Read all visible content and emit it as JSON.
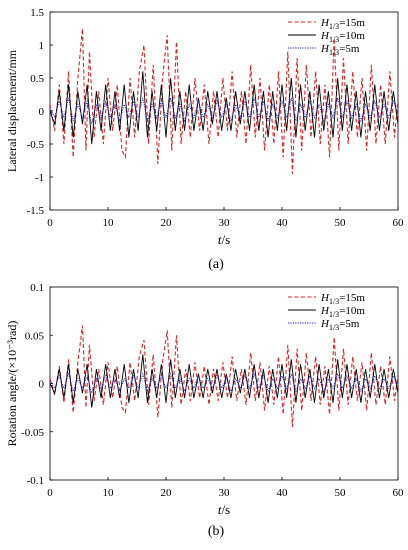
{
  "chart_data": [
    {
      "panel_label": "(a)",
      "type": "line",
      "xlabel_italic": "t",
      "xlabel_unit": "/s",
      "ylabel": "Lateral displacement/mm",
      "xlim": [
        0,
        60
      ],
      "ylim": [
        -1.5,
        1.5
      ],
      "x_ticks": [
        "0",
        "10",
        "20",
        "30",
        "40",
        "50",
        "60"
      ],
      "y_ticks": [
        "-1.5",
        "-1",
        "-0.5",
        "0",
        "0.5",
        "1",
        "1.5"
      ],
      "grid": false,
      "legend_position": "top-right",
      "series": [
        {
          "name": "H1/3=15m",
          "legend_var": "H",
          "legend_sub": "1/3",
          "legend_val": "=15m",
          "color": "#d62728",
          "dash": "dashed",
          "amplitude": 1.25,
          "x": [
            0,
            0.8,
            1.6,
            2.4,
            3.2,
            4.0,
            4.8,
            5.6,
            6.2,
            6.8,
            7.6,
            8.4,
            9.2,
            10.0,
            10.8,
            11.6,
            12.4,
            13.0,
            13.8,
            14.6,
            15.4,
            16.2,
            17.0,
            17.8,
            18.6,
            19.4,
            20.2,
            21.0,
            21.8,
            22.6,
            23.4,
            24.2,
            25.0,
            25.8,
            26.6,
            27.4,
            28.2,
            29.0,
            29.8,
            30.6,
            31.4,
            32.2,
            33.0,
            33.8,
            34.6,
            35.4,
            36.2,
            37.0,
            37.8,
            38.6,
            39.4,
            40.2,
            41.0,
            41.8,
            42.6,
            43.4,
            44.2,
            45.0,
            45.8,
            46.6,
            47.4,
            48.2,
            49.0,
            49.8,
            50.6,
            51.4,
            52.2,
            53.0,
            53.8,
            54.6,
            55.4,
            56.2,
            57.0,
            57.8,
            58.6,
            59.4,
            60.0
          ],
          "y": [
            0.1,
            -0.3,
            0.4,
            -0.5,
            0.6,
            -0.7,
            0.5,
            1.25,
            -0.6,
            0.9,
            -0.4,
            0.3,
            -0.5,
            0.5,
            -0.3,
            0.4,
            -0.6,
            -0.7,
            0.5,
            -0.4,
            0.6,
            1.0,
            -0.5,
            0.7,
            -0.8,
            0.5,
            1.15,
            -0.6,
            1.05,
            -0.5,
            0.3,
            -0.4,
            0.5,
            -0.3,
            0.4,
            -0.5,
            0.3,
            -0.4,
            0.5,
            -0.3,
            0.6,
            -0.4,
            0.3,
            -0.5,
            0.7,
            -0.4,
            0.5,
            -0.6,
            0.4,
            -0.5,
            0.6,
            -0.7,
            0.9,
            -0.95,
            0.8,
            -0.6,
            0.7,
            -0.4,
            0.6,
            -0.5,
            0.4,
            -0.7,
            1.1,
            -0.6,
            0.8,
            -0.5,
            0.6,
            -0.4,
            0.5,
            -0.6,
            0.7,
            -0.5,
            0.4,
            -0.5,
            0.6,
            -0.4,
            0.2
          ]
        },
        {
          "name": "H1/3=10m",
          "legend_var": "H",
          "legend_sub": "1/3",
          "legend_val": "=10m",
          "color": "#000000",
          "dash": "solid",
          "amplitude": 0.6,
          "x": [
            0,
            0.8,
            1.6,
            2.4,
            3.2,
            4.0,
            4.8,
            5.6,
            6.4,
            7.2,
            8.0,
            8.8,
            9.6,
            10.4,
            11.2,
            12.0,
            12.8,
            13.6,
            14.4,
            15.2,
            16.0,
            16.8,
            17.6,
            18.4,
            19.2,
            20.0,
            20.8,
            21.6,
            22.4,
            23.2,
            24.0,
            24.8,
            25.6,
            26.4,
            27.2,
            28.0,
            28.8,
            29.6,
            30.4,
            31.2,
            32.0,
            32.8,
            33.6,
            34.4,
            35.2,
            36.0,
            36.8,
            37.6,
            38.4,
            39.2,
            40.0,
            40.8,
            41.6,
            42.4,
            43.2,
            44.0,
            44.8,
            45.6,
            46.4,
            47.2,
            48.0,
            48.8,
            49.6,
            50.4,
            51.2,
            52.0,
            52.8,
            53.6,
            54.4,
            55.2,
            56.0,
            56.8,
            57.6,
            58.4,
            59.2,
            60.0
          ],
          "y": [
            0.0,
            -0.2,
            0.3,
            -0.3,
            0.4,
            -0.4,
            0.3,
            -0.2,
            0.4,
            -0.5,
            0.3,
            -0.3,
            0.4,
            -0.3,
            0.3,
            -0.3,
            0.4,
            -0.4,
            0.3,
            -0.3,
            0.6,
            -0.4,
            0.3,
            -0.3,
            0.4,
            -0.4,
            0.5,
            -0.3,
            0.3,
            -0.3,
            0.4,
            -0.3,
            0.2,
            -0.3,
            0.3,
            -0.2,
            0.3,
            -0.3,
            0.2,
            -0.3,
            0.3,
            -0.2,
            0.3,
            -0.3,
            0.4,
            -0.3,
            0.3,
            -0.4,
            0.3,
            -0.3,
            0.4,
            -0.3,
            0.5,
            -0.4,
            0.4,
            -0.3,
            0.3,
            -0.4,
            0.4,
            -0.3,
            0.3,
            -0.4,
            0.5,
            -0.3,
            0.4,
            -0.3,
            0.3,
            -0.4,
            0.3,
            -0.3,
            0.4,
            -0.3,
            0.3,
            -0.3,
            0.3,
            -0.2
          ]
        },
        {
          "name": "H1/3=5m",
          "legend_var": "H",
          "legend_sub": "1/3",
          "legend_val": "=5m",
          "color": "#1f1fcf",
          "dash": "dotted",
          "amplitude": 0.25,
          "x": [
            0,
            0.8,
            1.6,
            2.4,
            3.2,
            4.0,
            4.8,
            5.6,
            6.4,
            7.2,
            8.0,
            8.8,
            9.6,
            10.4,
            11.2,
            12.0,
            12.8,
            13.6,
            14.4,
            15.2,
            16.0,
            16.8,
            17.6,
            18.4,
            19.2,
            20.0,
            20.8,
            21.6,
            22.4,
            23.2,
            24.0,
            24.8,
            25.6,
            26.4,
            27.2,
            28.0,
            28.8,
            29.6,
            30.4,
            31.2,
            32.0,
            32.8,
            33.6,
            34.4,
            35.2,
            36.0,
            36.8,
            37.6,
            38.4,
            39.2,
            40.0,
            40.8,
            41.6,
            42.4,
            43.2,
            44.0,
            44.8,
            45.6,
            46.4,
            47.2,
            48.0,
            48.8,
            49.6,
            50.4,
            51.2,
            52.0,
            52.8,
            53.6,
            54.4,
            55.2,
            56.0,
            56.8,
            57.6,
            58.4,
            59.2,
            60.0
          ],
          "y": [
            0.05,
            -0.1,
            0.15,
            -0.1,
            0.2,
            -0.15,
            0.1,
            -0.1,
            0.15,
            -0.2,
            0.1,
            -0.1,
            0.15,
            -0.1,
            0.1,
            -0.15,
            0.1,
            -0.1,
            0.15,
            -0.1,
            0.2,
            -0.15,
            0.1,
            -0.1,
            0.15,
            -0.1,
            0.2,
            -0.1,
            0.1,
            -0.15,
            0.1,
            -0.1,
            0.15,
            -0.1,
            0.1,
            -0.1,
            0.15,
            -0.1,
            0.1,
            -0.15,
            0.1,
            -0.1,
            0.15,
            -0.1,
            0.2,
            -0.1,
            0.15,
            -0.15,
            0.1,
            -0.1,
            0.15,
            -0.1,
            0.2,
            -0.15,
            0.1,
            -0.1,
            0.15,
            -0.1,
            0.1,
            -0.15,
            0.1,
            -0.1,
            0.2,
            -0.1,
            0.15,
            -0.1,
            0.1,
            -0.15,
            0.1,
            -0.1,
            0.15,
            -0.1,
            0.1,
            -0.1,
            0.15,
            -0.05
          ]
        }
      ]
    },
    {
      "panel_label": "(b)",
      "type": "line",
      "xlabel_italic": "t",
      "xlabel_unit": "/s",
      "ylabel": "Rotation angle/(×10⁻³rad)",
      "xlim": [
        0,
        60
      ],
      "ylim": [
        -0.1,
        0.1
      ],
      "x_ticks": [
        "0",
        "10",
        "20",
        "30",
        "40",
        "50",
        "60"
      ],
      "y_ticks": [
        "-0.1",
        "-0.05",
        "0",
        "0.05",
        "0.1"
      ],
      "grid": false,
      "legend_position": "top-right",
      "series": [
        {
          "name": "H1/3=15m",
          "legend_var": "H",
          "legend_sub": "1/3",
          "legend_val": "=15m",
          "color": "#d62728",
          "dash": "dashed",
          "amplitude": 0.06,
          "x": [
            0,
            0.8,
            1.6,
            2.4,
            3.2,
            4.0,
            4.8,
            5.6,
            6.2,
            6.8,
            7.6,
            8.4,
            9.2,
            10.0,
            10.8,
            11.6,
            12.4,
            13.0,
            13.8,
            14.6,
            15.4,
            16.2,
            17.0,
            17.8,
            18.6,
            19.4,
            20.2,
            21.0,
            21.8,
            22.6,
            23.4,
            24.2,
            25.0,
            25.8,
            26.6,
            27.4,
            28.2,
            29.0,
            29.8,
            30.6,
            31.4,
            32.2,
            33.0,
            33.8,
            34.6,
            35.4,
            36.2,
            37.0,
            37.8,
            38.6,
            39.4,
            40.2,
            41.0,
            41.8,
            42.6,
            43.4,
            44.2,
            45.0,
            45.8,
            46.6,
            47.4,
            48.2,
            49.0,
            49.8,
            50.6,
            51.4,
            52.2,
            53.0,
            53.8,
            54.6,
            55.4,
            56.2,
            57.0,
            57.8,
            58.6,
            59.4,
            60.0
          ],
          "y": [
            0.005,
            -0.012,
            0.018,
            -0.02,
            0.025,
            -0.03,
            0.022,
            0.06,
            -0.025,
            0.04,
            -0.018,
            0.015,
            -0.022,
            0.022,
            -0.015,
            0.018,
            -0.025,
            -0.03,
            0.022,
            -0.018,
            0.028,
            0.045,
            -0.022,
            0.03,
            -0.035,
            0.022,
            0.055,
            -0.025,
            0.05,
            -0.022,
            0.015,
            -0.018,
            0.022,
            -0.015,
            0.018,
            -0.022,
            0.015,
            -0.018,
            0.022,
            -0.015,
            0.028,
            -0.018,
            0.015,
            -0.022,
            0.032,
            -0.018,
            0.022,
            -0.028,
            0.018,
            -0.022,
            0.028,
            -0.032,
            0.04,
            -0.045,
            0.036,
            -0.028,
            0.032,
            -0.018,
            0.028,
            -0.022,
            0.018,
            -0.032,
            0.048,
            -0.028,
            0.036,
            -0.022,
            0.028,
            -0.018,
            0.022,
            -0.028,
            0.032,
            -0.022,
            0.018,
            -0.022,
            0.028,
            -0.018,
            0.01
          ]
        },
        {
          "name": "H1/3=10m",
          "legend_var": "H",
          "legend_sub": "1/3",
          "legend_val": "=10m",
          "color": "#000000",
          "dash": "solid",
          "amplitude": 0.03,
          "x": [
            0,
            0.8,
            1.6,
            2.4,
            3.2,
            4.0,
            4.8,
            5.6,
            6.4,
            7.2,
            8.0,
            8.8,
            9.6,
            10.4,
            11.2,
            12.0,
            12.8,
            13.6,
            14.4,
            15.2,
            16.0,
            16.8,
            17.6,
            18.4,
            19.2,
            20.0,
            20.8,
            21.6,
            22.4,
            23.2,
            24.0,
            24.8,
            25.6,
            26.4,
            27.2,
            28.0,
            28.8,
            29.6,
            30.4,
            31.2,
            32.0,
            32.8,
            33.6,
            34.4,
            35.2,
            36.0,
            36.8,
            37.6,
            38.4,
            39.2,
            40.0,
            40.8,
            41.6,
            42.4,
            43.2,
            44.0,
            44.8,
            45.6,
            46.4,
            47.2,
            48.0,
            48.8,
            49.6,
            50.4,
            51.2,
            52.0,
            52.8,
            53.6,
            54.4,
            55.2,
            56.0,
            56.8,
            57.6,
            58.4,
            59.2,
            60.0
          ],
          "y": [
            0.0,
            -0.01,
            0.015,
            -0.015,
            0.02,
            -0.02,
            0.015,
            -0.01,
            0.02,
            -0.025,
            0.015,
            -0.015,
            0.02,
            -0.015,
            0.015,
            -0.015,
            0.02,
            -0.02,
            0.015,
            -0.015,
            0.03,
            -0.02,
            0.015,
            -0.015,
            0.02,
            -0.02,
            0.025,
            -0.015,
            0.015,
            -0.015,
            0.02,
            -0.015,
            0.01,
            -0.015,
            0.015,
            -0.01,
            0.015,
            -0.015,
            0.01,
            -0.015,
            0.015,
            -0.01,
            0.015,
            -0.015,
            0.02,
            -0.015,
            0.015,
            -0.02,
            0.015,
            -0.015,
            0.02,
            -0.015,
            0.025,
            -0.02,
            0.02,
            -0.015,
            0.015,
            -0.02,
            0.02,
            -0.015,
            0.015,
            -0.02,
            0.025,
            -0.015,
            0.02,
            -0.015,
            0.015,
            -0.02,
            0.015,
            -0.015,
            0.02,
            -0.015,
            0.015,
            -0.015,
            0.015,
            -0.01
          ]
        },
        {
          "name": "H1/3=5m",
          "legend_var": "H",
          "legend_sub": "1/3",
          "legend_val": "=5m",
          "color": "#1f1fcf",
          "dash": "dotted",
          "amplitude": 0.012,
          "x": [
            0,
            0.8,
            1.6,
            2.4,
            3.2,
            4.0,
            4.8,
            5.6,
            6.4,
            7.2,
            8.0,
            8.8,
            9.6,
            10.4,
            11.2,
            12.0,
            12.8,
            13.6,
            14.4,
            15.2,
            16.0,
            16.8,
            17.6,
            18.4,
            19.2,
            20.0,
            20.8,
            21.6,
            22.4,
            23.2,
            24.0,
            24.8,
            25.6,
            26.4,
            27.2,
            28.0,
            28.8,
            29.6,
            30.4,
            31.2,
            32.0,
            32.8,
            33.6,
            34.4,
            35.2,
            36.0,
            36.8,
            37.6,
            38.4,
            39.2,
            40.0,
            40.8,
            41.6,
            42.4,
            43.2,
            44.0,
            44.8,
            45.6,
            46.4,
            47.2,
            48.0,
            48.8,
            49.6,
            50.4,
            51.2,
            52.0,
            52.8,
            53.6,
            54.4,
            55.2,
            56.0,
            56.8,
            57.6,
            58.4,
            59.2,
            60.0
          ],
          "y": [
            0.003,
            -0.005,
            0.008,
            -0.005,
            0.01,
            -0.008,
            0.005,
            -0.005,
            0.008,
            -0.01,
            0.005,
            -0.005,
            0.008,
            -0.005,
            0.005,
            -0.008,
            0.005,
            -0.005,
            0.008,
            -0.005,
            0.01,
            -0.008,
            0.005,
            -0.005,
            0.008,
            -0.005,
            0.01,
            -0.005,
            0.005,
            -0.008,
            0.005,
            -0.005,
            0.008,
            -0.005,
            0.005,
            -0.005,
            0.008,
            -0.005,
            0.005,
            -0.008,
            0.005,
            -0.005,
            0.008,
            -0.005,
            0.01,
            -0.005,
            0.008,
            -0.008,
            0.005,
            -0.005,
            0.008,
            -0.005,
            0.01,
            -0.008,
            0.005,
            -0.005,
            0.008,
            -0.005,
            0.005,
            -0.008,
            0.005,
            -0.005,
            0.01,
            -0.005,
            0.008,
            -0.005,
            0.005,
            -0.008,
            0.005,
            -0.005,
            0.008,
            -0.005,
            0.005,
            -0.005,
            0.008,
            -0.003
          ]
        }
      ]
    }
  ]
}
